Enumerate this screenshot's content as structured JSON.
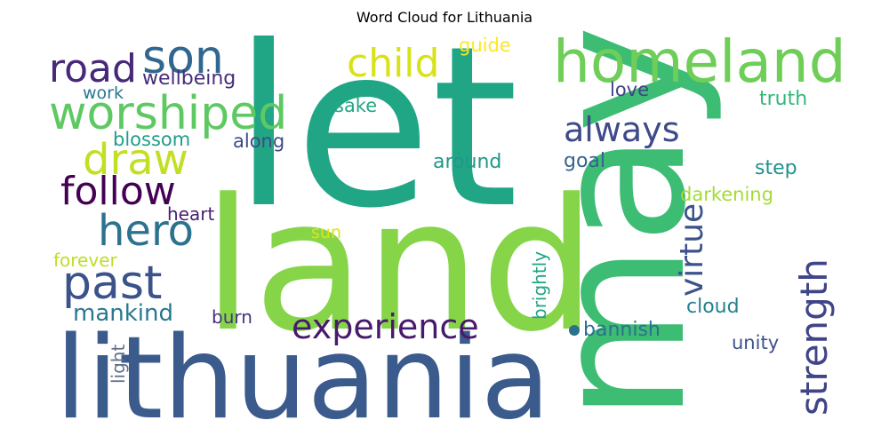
{
  "chart_data": {
    "type": "wordcloud",
    "title": "Word Cloud for Lithuania",
    "words": [
      {
        "text": "let",
        "color": "#21a685"
      },
      {
        "text": "land",
        "color": "#86d549"
      },
      {
        "text": "lithuania",
        "color": "#3b5b8c"
      },
      {
        "text": "may",
        "color": "#3dbc74"
      },
      {
        "text": "homeland",
        "color": "#6ece58"
      },
      {
        "text": "worshiped",
        "color": "#5ec962"
      },
      {
        "text": "son",
        "color": "#31678e"
      },
      {
        "text": "road",
        "color": "#482878"
      },
      {
        "text": "child",
        "color": "#d8e219"
      },
      {
        "text": "draw",
        "color": "#c2df23"
      },
      {
        "text": "follow",
        "color": "#440154"
      },
      {
        "text": "hero",
        "color": "#2c728e"
      },
      {
        "text": "past",
        "color": "#3b528b"
      },
      {
        "text": "experience",
        "color": "#481a6c"
      },
      {
        "text": "strength",
        "color": "#414487"
      },
      {
        "text": "always",
        "color": "#3e4a89"
      },
      {
        "text": "virtue",
        "color": "#3b528b"
      },
      {
        "text": "mankind",
        "color": "#2a788e"
      },
      {
        "text": "wellbeing",
        "color": "#472d7b"
      },
      {
        "text": "guide",
        "color": "#fde725"
      },
      {
        "text": "work",
        "color": "#2a788e"
      },
      {
        "text": "blossom",
        "color": "#1f9e89"
      },
      {
        "text": "along",
        "color": "#3e4a89"
      },
      {
        "text": "sake",
        "color": "#22a884"
      },
      {
        "text": "love",
        "color": "#404387"
      },
      {
        "text": "truth",
        "color": "#35b779"
      },
      {
        "text": "around",
        "color": "#1f988b"
      },
      {
        "text": "goal",
        "color": "#33638d"
      },
      {
        "text": "step",
        "color": "#21918c"
      },
      {
        "text": "darkening",
        "color": "#a5db36"
      },
      {
        "text": "heart",
        "color": "#481f70"
      },
      {
        "text": "sun",
        "color": "#dde318"
      },
      {
        "text": "forever",
        "color": "#bddf26"
      },
      {
        "text": "brightly",
        "color": "#20a486"
      },
      {
        "text": "cloud",
        "color": "#27808e"
      },
      {
        "text": "burn",
        "color": "#46327e"
      },
      {
        "text": "bannish",
        "color": "#2d708e"
      },
      {
        "text": "light",
        "color": "#5f6f89"
      },
      {
        "text": "unity",
        "color": "#3b5289"
      }
    ]
  }
}
